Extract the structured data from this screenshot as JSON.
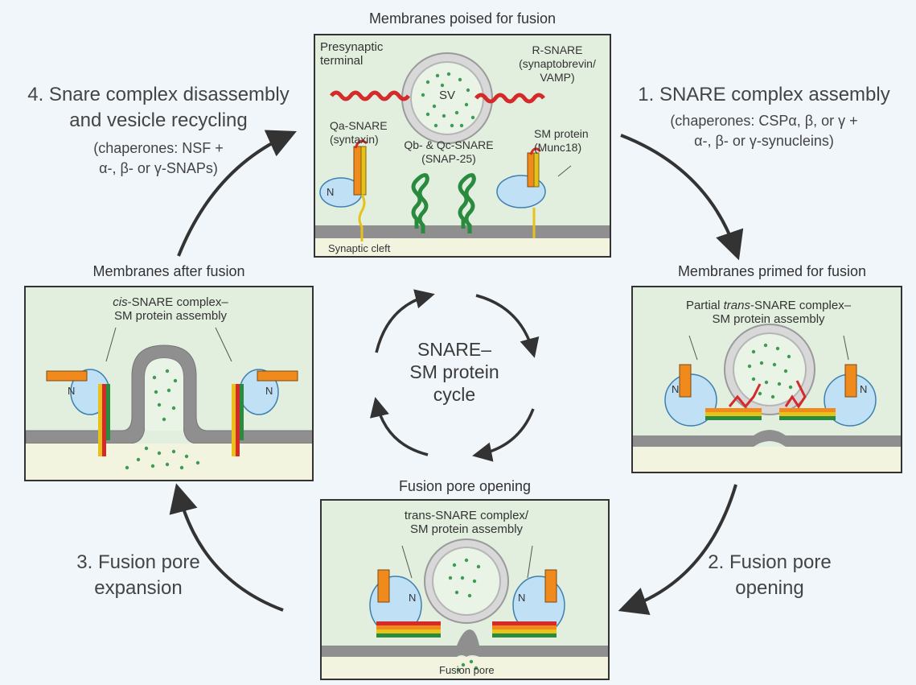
{
  "center": {
    "line1": "SNARE–",
    "line2": "SM protein",
    "line3": "cycle"
  },
  "steps": {
    "s1": {
      "title": "1. SNARE complex assembly",
      "chap1": "(chaperones: CSPα, β, or γ +",
      "chap2": "α-, β- or γ-synucleins)"
    },
    "s2": {
      "line1": "2. Fusion pore",
      "line2": "opening"
    },
    "s3": {
      "line1": "3. Fusion pore",
      "line2": "expansion"
    },
    "s4": {
      "line1": "4. Snare complex disassembly",
      "line2": "and vesicle recycling",
      "chap1": "(chaperones: NSF +",
      "chap2": "α-, β- or γ-SNAPs)"
    }
  },
  "panels": {
    "top": {
      "title": "Membranes poised for fusion",
      "presynaptic1": "Presynaptic",
      "presynaptic2": "terminal",
      "rsnare1": "R-SNARE",
      "rsnare2": "(synaptobrevin/",
      "rsnare3": "VAMP)",
      "sv": "SV",
      "qa1": "Qa-SNARE",
      "qa2": "(syntaxin)",
      "qbc1": "Qb- & Qc-SNARE",
      "qbc2": "(SNAP-25)",
      "sm1": "SM protein",
      "sm2": "(Munc18)",
      "n": "N",
      "cleft": "Synaptic cleft"
    },
    "right": {
      "title": "Membranes primed for fusion",
      "label1a": "Partial ",
      "label1b": "trans",
      "label1c": "-SNARE complex–",
      "label2": "SM protein assembly",
      "n1": "N",
      "n2": "N"
    },
    "bottom": {
      "title": "Fusion pore opening",
      "label1": "trans-SNARE complex/",
      "label2": "SM protein assembly",
      "pore": "Fusion pore",
      "n1": "N",
      "n2": "N"
    },
    "left": {
      "title": "Membranes after fusion",
      "label1a": "cis",
      "label1b": "-SNARE complex–",
      "label2": "SM protein assembly",
      "n1": "N",
      "n2": "N"
    }
  },
  "colors": {
    "background": "#f1f6fa",
    "panel_fill": "#e2efdf",
    "membrane": "#8a8a8a",
    "cleft": "#f3f4df",
    "vesicle": "#d8d8d8",
    "vesicle_inner": "#e9f3e6",
    "r_snare": "#d42a2a",
    "qa_snare": "#f08a1c",
    "qbc_snare": "#2a8a3e",
    "linker": "#e8c21a",
    "sm_protein": "#bfe0f5",
    "arrow": "#333333"
  }
}
